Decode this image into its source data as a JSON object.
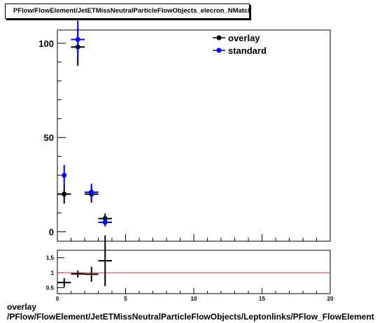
{
  "title": "PFlow/FlowElement/JetETMissNeutralParticleFlowObjects_elecron_NMatchedNFE",
  "caption": {
    "line1": "overlay",
    "line2": "/PFlow/FlowElement/JetETMissNeutralParticleFlowObjects/Leptonlinks/PFlow_FlowElement"
  },
  "colors": {
    "overlay": "#000000",
    "standard": "#0000ff",
    "ratio_line": "#cc3333"
  },
  "chart_data": [
    {
      "type": "scatter",
      "title": "PFlow/FlowElement/JetETMissNeutralParticleFlowObjects_elecron_NMatchedNFE",
      "xlim": [
        0,
        20
      ],
      "ylim": [
        -5,
        107
      ],
      "y_ticks": [
        0,
        50,
        100
      ],
      "legend": "top-right",
      "series": [
        {
          "name": "overlay",
          "color": "#000000",
          "x": [
            0.5,
            1.5,
            2.5,
            3.5
          ],
          "y": [
            20,
            98,
            20,
            7
          ],
          "x_err": [
            0.5,
            0.5,
            0.5,
            0.5
          ],
          "y_err": [
            5,
            10,
            4.5,
            2.7
          ]
        },
        {
          "name": "standard",
          "color": "#0000ff",
          "x": [
            0.5,
            1.5,
            2.5,
            3.5
          ],
          "y": [
            30,
            102,
            21,
            5
          ],
          "x_err": [
            0,
            0.5,
            0.5,
            0.5
          ],
          "y_err": [
            5.5,
            10,
            4.5,
            2.2
          ]
        }
      ]
    },
    {
      "type": "scatter",
      "xlim": [
        0,
        20
      ],
      "ylim": [
        0.3,
        1.75
      ],
      "x_ticks": [
        0,
        5,
        10,
        15,
        20
      ],
      "y_ticks": [
        0.5,
        1,
        1.5
      ],
      "reference_line": 1,
      "series": [
        {
          "color": "#000000",
          "x": [
            0.5,
            1.5,
            2.5,
            3.5
          ],
          "y": [
            0.67,
            0.96,
            0.95,
            1.4
          ],
          "x_err": [
            0.5,
            0.5,
            0.5,
            0.5
          ],
          "y_err": [
            0.15,
            0.12,
            0.25,
            0.85
          ]
        }
      ]
    }
  ]
}
